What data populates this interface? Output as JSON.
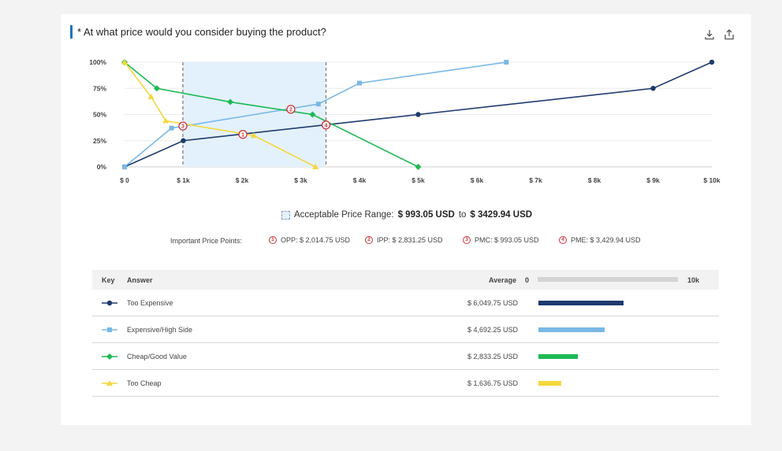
{
  "title": "* At what price would you consider buying the product?",
  "icons": [
    "download-icon",
    "share-icon"
  ],
  "acceptable_range": {
    "label": "Acceptable Price Range:",
    "low": "$ 993.05 USD",
    "to": "to",
    "high": "$ 3429.94 USD"
  },
  "important_points": {
    "label": "Important Price Points:",
    "items": [
      {
        "num": "1",
        "text": "OPP: $ 2,014.75 USD"
      },
      {
        "num": "2",
        "text": "IPP: $ 2,831.25 USD"
      },
      {
        "num": "3",
        "text": "PMC: $ 993.05 USD"
      },
      {
        "num": "4",
        "text": "PME: $ 3,429.94 USD"
      }
    ]
  },
  "table": {
    "headers": {
      "key": "Key",
      "answer": "Answer",
      "average": "Average",
      "scale_min": "0",
      "scale_max": "10k"
    },
    "rows": [
      {
        "answer": "Too Expensive",
        "average": "$ 6,049.75 USD",
        "value": 6049.75,
        "color": "#1f3a6e",
        "marker": "circle"
      },
      {
        "answer": "Expensive/High Side",
        "average": "$ 4,692.25 USD",
        "value": 4692.25,
        "color": "#7ab8e6",
        "marker": "square"
      },
      {
        "answer": "Cheap/Good Value",
        "average": "$ 2,833.25 USD",
        "value": 2833.25,
        "color": "#1db954",
        "marker": "diamond"
      },
      {
        "answer": "Too Cheap",
        "average": "$ 1,636.75 USD",
        "value": 1636.75,
        "color": "#f5d83c",
        "marker": "triangle"
      }
    ]
  },
  "chart_data": {
    "type": "line",
    "title": "* At what price would you consider buying the product?",
    "xlabel": "",
    "ylabel": "",
    "xlim": [
      0,
      10000
    ],
    "ylim": [
      0,
      100
    ],
    "x_ticks": [
      "$ 0",
      "$ 1k",
      "$ 2k",
      "$ 3k",
      "$ 4k",
      "$ 5k",
      "$ 6k",
      "$ 7k",
      "$ 8k",
      "$ 9k",
      "$ 10k"
    ],
    "y_ticks": [
      "0%",
      "25%",
      "50%",
      "75%",
      "100%"
    ],
    "grid": true,
    "shaded_range": [
      993.05,
      3429.94
    ],
    "series": [
      {
        "name": "Too Expensive",
        "color": "#1f3a6e",
        "marker": "circle",
        "x": [
          0,
          1000,
          5000,
          9000,
          10000
        ],
        "y": [
          0,
          25,
          50,
          75,
          100
        ]
      },
      {
        "name": "Expensive/High Side",
        "color": "#7ab8e6",
        "marker": "square",
        "x": [
          0,
          800,
          3300,
          4000,
          6500
        ],
        "y": [
          0,
          37,
          60,
          80,
          100
        ]
      },
      {
        "name": "Cheap/Good Value",
        "color": "#1db954",
        "marker": "diamond",
        "x": [
          0,
          550,
          1800,
          3200,
          5000
        ],
        "y": [
          100,
          75,
          62,
          50,
          0
        ]
      },
      {
        "name": "Too Cheap",
        "color": "#f5d83c",
        "marker": "triangle",
        "x": [
          0,
          450,
          700,
          2200,
          3250
        ],
        "y": [
          100,
          67,
          44,
          30,
          0
        ]
      }
    ],
    "intersections": [
      {
        "num": "1",
        "label": "OPP",
        "x": 2014.75,
        "y": 31
      },
      {
        "num": "2",
        "label": "IPP",
        "x": 2831.25,
        "y": 55
      },
      {
        "num": "3",
        "label": "PMC",
        "x": 993.05,
        "y": 39
      },
      {
        "num": "4",
        "label": "PME",
        "x": 3429.94,
        "y": 40
      }
    ]
  }
}
